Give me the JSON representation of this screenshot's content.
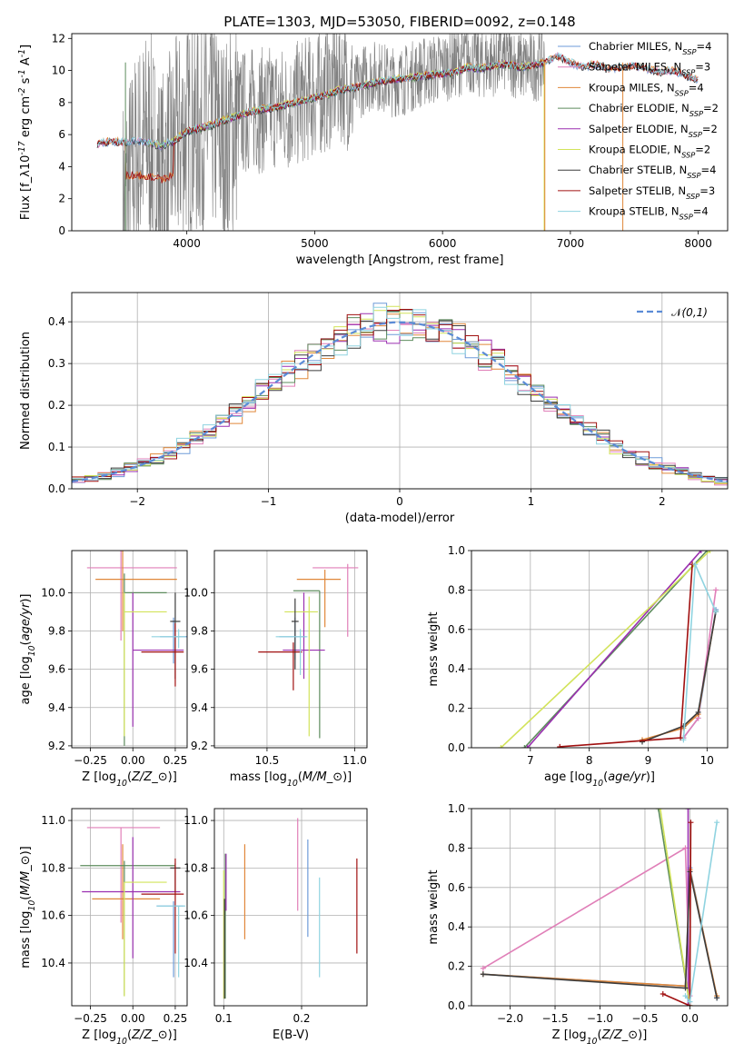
{
  "figure": {
    "title": "PLATE=1303, MJD=53050, FIBERID=0092, z=0.148"
  },
  "colors": {
    "data_gray": "#808080",
    "normal_curve": "#5b8bd6",
    "grid": "#b0b0b0",
    "series": [
      "#6e9bd8",
      "#e07fb8",
      "#e0873a",
      "#5d8c5d",
      "#9a2fb0",
      "#d2e35a",
      "#3b3b3b",
      "#a01010",
      "#8fd3e0"
    ]
  },
  "series_names": [
    "Chabrier MILES, N$_{SSP}$=4",
    "Salpeter MILES, N$_{SSP}$=3",
    "Kroupa MILES, N$_{SSP}$=4",
    "Chabrier ELODIE, N$_{SSP}$=2",
    "Salpeter ELODIE, N$_{SSP}$=2",
    "Kroupa ELODIE, N$_{SSP}$=2",
    "Chabrier STELIB, N$_{SSP}$=4",
    "Salpeter STELIB, N$_{SSP}$=3",
    "Kroupa STELIB, N$_{SSP}$=4"
  ],
  "chart_data": [
    {
      "id": "spectrum",
      "type": "line",
      "xlabel": "wavelength [Angstrom, rest frame]",
      "ylabel": "Flux [f$_\\lambda$10$^{-17}$ erg cm$^{-2}$ s$^{-1}$ A$^{-1}$]",
      "xlim": [
        3100,
        8230
      ],
      "ylim": [
        0,
        12.3
      ],
      "xticks": [
        4000,
        5000,
        6000,
        7000,
        8000
      ],
      "yticks": [
        0,
        2,
        4,
        6,
        8,
        10,
        12
      ],
      "grid": false,
      "legend": "top-right",
      "data_series": {
        "x": [
          3500,
          3600,
          3700,
          3800,
          3900,
          4000,
          4100,
          4200,
          4300,
          4400,
          4500,
          4600,
          4700,
          4800,
          4900,
          5000,
          5100,
          5200,
          5300,
          5400,
          5500,
          5600,
          5700,
          5800,
          5900,
          6000,
          6100,
          6200,
          6300,
          6400,
          6500,
          6600,
          6700,
          6800
        ],
        "y": [
          1.5,
          4.5,
          6,
          3,
          5,
          6.4,
          6.2,
          6.8,
          5.2,
          7.2,
          7.6,
          7.5,
          7.8,
          7.5,
          8.1,
          8.4,
          8.9,
          9.5,
          8.6,
          9.6,
          9.7,
          9.3,
          9.4,
          9.8,
          10,
          10.2,
          10.5,
          10.8,
          10.4,
          10.6,
          10.8,
          10.3,
          10.2,
          10.5
        ]
      },
      "model": {
        "x": [
          3300,
          3400,
          3500,
          3600,
          3700,
          3800,
          3900,
          4000,
          4100,
          4200,
          4300,
          4400,
          4500,
          4600,
          4700,
          4800,
          4900,
          5000,
          5100,
          5200,
          5300,
          5400,
          5500,
          5600,
          5700,
          5800,
          5900,
          6000,
          6100,
          6200,
          6300,
          6400,
          6500,
          6600,
          6700,
          6800,
          6900,
          7000,
          7100,
          7200,
          7300,
          7400,
          7500,
          7600,
          7700,
          7800,
          7900,
          8000
        ],
        "y": [
          5.4,
          5.6,
          5.5,
          5.6,
          5.5,
          5.3,
          5.6,
          6.2,
          6.4,
          6.6,
          6.9,
          7.2,
          7.4,
          7.6,
          7.7,
          7.9,
          8.1,
          8.3,
          8.5,
          8.8,
          8.9,
          9.1,
          9.3,
          9.4,
          9.5,
          9.6,
          9.7,
          9.8,
          9.9,
          10.2,
          10.1,
          10.3,
          10.4,
          10.2,
          10.3,
          10.5,
          10.9,
          10.5,
          10.2,
          10.4,
          10.1,
          10.2,
          10.3,
          10.1,
          9.9,
          10,
          9.7,
          9.4
        ]
      }
    },
    {
      "id": "residuals",
      "type": "line",
      "xlabel": "(data-model)/error",
      "ylabel": "Normed distribution",
      "xlim": [
        -2.5,
        2.5
      ],
      "ylim": [
        0,
        0.47
      ],
      "xticks": [
        -2,
        -1,
        0,
        1,
        2
      ],
      "yticks": [
        0.0,
        0.1,
        0.2,
        0.3,
        0.4
      ],
      "grid": true,
      "legend": "top-right",
      "legend_label": "$\\mathcal{N}(0,1)$",
      "normal_curve": {
        "mu": 0,
        "sigma": 1
      }
    },
    {
      "id": "age_vs_Z",
      "type": "scatter",
      "xlabel": "Z [log$_{10}$($Z/Z_\\odot$)]",
      "ylabel": "age  [log$_{10}$($age/yr$)]",
      "xlim": [
        -0.36,
        0.32
      ],
      "ylim": [
        9.19,
        10.22
      ],
      "xticks": [
        -0.25,
        0.0,
        0.25
      ],
      "yticks": [
        9.2,
        9.4,
        9.6,
        9.8,
        10.0
      ],
      "grid": true,
      "points": [
        {
          "s": 0,
          "x": 0.24,
          "y": 9.77,
          "xerr": [
            0.08,
            0.36
          ],
          "yerr": [
            0.14,
            0.1
          ]
        },
        {
          "s": 1,
          "x": -0.07,
          "y": 10.13,
          "xerr": [
            0.2,
            0.33
          ],
          "yerr": [
            0.38,
            0.3
          ]
        },
        {
          "s": 2,
          "x": -0.06,
          "y": 10.07,
          "xerr": [
            0.16,
            0.32
          ],
          "yerr": [
            0.27,
            0.2
          ]
        },
        {
          "s": 3,
          "x": -0.05,
          "y": 10.0,
          "xerr": [
            0.0,
            0.25
          ],
          "yerr": [
            0.8,
            0.1
          ]
        },
        {
          "s": 4,
          "x": 0.0,
          "y": 9.7,
          "xerr": [
            0.0,
            0.3
          ],
          "yerr": [
            0.4,
            0.3
          ]
        },
        {
          "s": 5,
          "x": -0.05,
          "y": 9.9,
          "xerr": [
            0.0,
            0.25
          ],
          "yerr": [
            0.65,
            0.1
          ]
        },
        {
          "s": 6,
          "x": 0.25,
          "y": 9.85,
          "xerr": [
            0.03,
            0.03
          ],
          "yerr": [
            0.3,
            0.15
          ]
        },
        {
          "s": 7,
          "x": 0.25,
          "y": 9.69,
          "xerr": [
            0.2,
            0.05
          ],
          "yerr": [
            0.18,
            0.15
          ]
        },
        {
          "s": 8,
          "x": 0.27,
          "y": 9.77,
          "xerr": [
            0.16,
            0.04
          ],
          "yerr": [
            0.06,
            0.04
          ]
        }
      ]
    },
    {
      "id": "age_vs_mass",
      "type": "scatter",
      "xlabel": "mass [log$_{10}$($M/M_\\odot$)]",
      "ylabel": "",
      "xlim": [
        10.2,
        11.07
      ],
      "ylim": [
        9.19,
        10.22
      ],
      "xticks": [
        10.5,
        11.0
      ],
      "yticks": [
        9.2,
        9.4,
        9.6,
        9.8,
        10.0
      ],
      "grid": true,
      "points": [
        {
          "s": 0,
          "x": 10.66,
          "y": 9.77,
          "xerr": [
            0.09,
            0.06
          ],
          "yerr": [
            0.12,
            0.1
          ]
        },
        {
          "s": 1,
          "x": 10.96,
          "y": 10.13,
          "xerr": [
            0.2,
            0.06
          ],
          "yerr": [
            0.36,
            0.02
          ]
        },
        {
          "s": 2,
          "x": 10.83,
          "y": 10.07,
          "xerr": [
            0.16,
            0.09
          ],
          "yerr": [
            0.25,
            0.05
          ]
        },
        {
          "s": 3,
          "x": 10.8,
          "y": 10.01,
          "xerr": [
            0.15,
            0.0
          ],
          "yerr": [
            0.77,
            0.0
          ]
        },
        {
          "s": 4,
          "x": 10.71,
          "y": 9.7,
          "xerr": [
            0.12,
            0.12
          ],
          "yerr": [
            0.15,
            0.3
          ]
        },
        {
          "s": 5,
          "x": 10.74,
          "y": 9.9,
          "xerr": [
            0.14,
            0.05
          ],
          "yerr": [
            0.65,
            0.08
          ]
        },
        {
          "s": 6,
          "x": 10.66,
          "y": 9.85,
          "xerr": [
            0.02,
            0.02
          ],
          "yerr": [
            0.25,
            0.12
          ]
        },
        {
          "s": 7,
          "x": 10.65,
          "y": 9.69,
          "xerr": [
            0.2,
            0.05
          ],
          "yerr": [
            0.2,
            0.05
          ]
        },
        {
          "s": 8,
          "x": 10.69,
          "y": 9.77,
          "xerr": [
            0.14,
            0.04
          ],
          "yerr": [
            0.2,
            0.04
          ]
        }
      ]
    },
    {
      "id": "weight_vs_age",
      "type": "line",
      "xlabel": "age  [log$_{10}$($age/yr$)]",
      "ylabel": "mass weight",
      "xlim": [
        6.0,
        10.35
      ],
      "ylim": [
        0,
        1.0
      ],
      "xticks": [
        7,
        8,
        9,
        10
      ],
      "yticks": [
        0.0,
        0.2,
        0.4,
        0.6,
        0.8,
        1.0
      ],
      "grid": true,
      "lines": [
        {
          "s": 0,
          "x": [
            9.6,
            9.85,
            10.15
          ],
          "y": [
            0.05,
            0.15,
            0.7
          ]
        },
        {
          "s": 1,
          "x": [
            9.6,
            9.85,
            10.15
          ],
          "y": [
            0.05,
            0.15,
            0.8
          ]
        },
        {
          "s": 2,
          "x": [
            8.9,
            9.6,
            9.85,
            10.15
          ],
          "y": [
            0.04,
            0.1,
            0.17,
            0.69
          ]
        },
        {
          "s": 3,
          "x": [
            6.9,
            10.0
          ],
          "y": [
            0.0,
            1.0
          ]
        },
        {
          "s": 4,
          "x": [
            6.95,
            9.9
          ],
          "y": [
            0.0,
            1.0
          ]
        },
        {
          "s": 5,
          "x": [
            6.5,
            10.05
          ],
          "y": [
            0.0,
            1.0
          ]
        },
        {
          "s": 6,
          "x": [
            8.9,
            9.6,
            9.85,
            10.15
          ],
          "y": [
            0.03,
            0.11,
            0.18,
            0.69
          ]
        },
        {
          "s": 7,
          "x": [
            7.5,
            9.55,
            9.75
          ],
          "y": [
            0.005,
            0.05,
            0.93
          ]
        },
        {
          "s": 8,
          "x": [
            9.6,
            9.8,
            10.15
          ],
          "y": [
            0.04,
            0.93,
            0.69
          ]
        }
      ]
    },
    {
      "id": "mass_vs_Z",
      "type": "scatter",
      "xlabel": "Z [log$_{10}$($Z/Z_\\odot$)]",
      "ylabel": "mass [log$_{10}$($M/M_\\odot$)]",
      "xlim": [
        -0.36,
        0.32
      ],
      "ylim": [
        10.22,
        11.05
      ],
      "xticks": [
        -0.25,
        0.0,
        0.25
      ],
      "yticks": [
        10.4,
        10.6,
        10.8,
        11.0
      ],
      "grid": true,
      "points": [
        {
          "s": 0,
          "x": 0.24,
          "y": 10.64,
          "xerr": [
            0.1,
            0.06
          ],
          "yerr": [
            0.3,
            0.02
          ]
        },
        {
          "s": 1,
          "x": -0.07,
          "y": 10.97,
          "xerr": [
            0.2,
            0.23
          ],
          "yerr": [
            0.4,
            0.0
          ]
        },
        {
          "s": 2,
          "x": -0.06,
          "y": 10.67,
          "xerr": [
            0.18,
            0.22
          ],
          "yerr": [
            0.17,
            0.23
          ]
        },
        {
          "s": 3,
          "x": -0.05,
          "y": 10.81,
          "xerr": [
            0.26,
            0.3
          ],
          "yerr": [
            0.55,
            0.02
          ]
        },
        {
          "s": 4,
          "x": 0.0,
          "y": 10.7,
          "xerr": [
            0.3,
            0.28
          ],
          "yerr": [
            0.28,
            0.23
          ]
        },
        {
          "s": 5,
          "x": -0.05,
          "y": 10.74,
          "xerr": [
            0.0,
            0.25
          ],
          "yerr": [
            0.48,
            0.0
          ]
        },
        {
          "s": 6,
          "x": 0.25,
          "y": 10.8,
          "xerr": [
            0.03,
            0.03
          ],
          "yerr": [
            0.1,
            0.02
          ]
        },
        {
          "s": 7,
          "x": 0.25,
          "y": 10.69,
          "xerr": [
            0.2,
            0.05
          ],
          "yerr": [
            0.25,
            0.15
          ]
        },
        {
          "s": 8,
          "x": 0.27,
          "y": 10.64,
          "xerr": [
            0.13,
            0.04
          ],
          "yerr": [
            0.3,
            0.0
          ]
        }
      ]
    },
    {
      "id": "mass_vs_EBV",
      "type": "scatter",
      "xlabel": "E(B-V)",
      "ylabel": "",
      "xlim": [
        0.088,
        0.284
      ],
      "ylim": [
        10.22,
        11.05
      ],
      "xticks": [
        0.1,
        0.2
      ],
      "yticks": [
        10.4,
        10.6,
        10.8,
        11.0
      ],
      "grid": true,
      "points": [
        {
          "s": 0,
          "x": 0.208,
          "y": 10.64,
          "xerr": [
            0,
            0
          ],
          "yerr": [
            0.13,
            0.28
          ]
        },
        {
          "s": 1,
          "x": 0.195,
          "y": 10.75,
          "xerr": [
            0,
            0
          ],
          "yerr": [
            0.13,
            0.26
          ]
        },
        {
          "s": 2,
          "x": 0.127,
          "y": 10.73,
          "xerr": [
            0,
            0
          ],
          "yerr": [
            0.23,
            0.17
          ]
        },
        {
          "s": 3,
          "x": 0.102,
          "y": 10.6,
          "xerr": [
            0,
            0
          ],
          "yerr": [
            0.35,
            0.26
          ]
        },
        {
          "s": 4,
          "x": 0.103,
          "y": 10.72,
          "xerr": [
            0,
            0
          ],
          "yerr": [
            0.1,
            0.14
          ]
        },
        {
          "s": 5,
          "x": 0.1,
          "y": 10.65,
          "xerr": [
            0,
            0
          ],
          "yerr": [
            0.4,
            0.14
          ]
        },
        {
          "s": 6,
          "x": 0.101,
          "y": 10.55,
          "xerr": [
            0,
            0
          ],
          "yerr": [
            0.3,
            0.12
          ]
        },
        {
          "s": 7,
          "x": 0.271,
          "y": 10.64,
          "xerr": [
            0,
            0
          ],
          "yerr": [
            0.2,
            0.2
          ]
        },
        {
          "s": 8,
          "x": 0.223,
          "y": 10.55,
          "xerr": [
            0,
            0
          ],
          "yerr": [
            0.21,
            0.21
          ]
        }
      ]
    },
    {
      "id": "weight_vs_Z",
      "type": "line",
      "xlabel": "Z [log$_{10}$($Z/Z_\\odot$)]",
      "ylabel": "mass weight",
      "xlim": [
        -2.43,
        0.42
      ],
      "ylim": [
        0,
        1.0
      ],
      "xticks": [
        -2.0,
        -1.5,
        -1.0,
        -0.5,
        0.0
      ],
      "yticks": [
        0.0,
        0.2,
        0.4,
        0.6,
        0.8,
        1.0
      ],
      "grid": true,
      "lines": [
        {
          "s": 0,
          "x": [
            -2.3,
            -0.05,
            0.0,
            0.3
          ],
          "y": [
            0.16,
            0.1,
            0.7,
            0.04
          ]
        },
        {
          "s": 1,
          "x": [
            -2.3,
            -0.05,
            0.0
          ],
          "y": [
            0.19,
            0.8,
            0.05
          ]
        },
        {
          "s": 2,
          "x": [
            -2.3,
            -0.05,
            0.0,
            0.3
          ],
          "y": [
            0.16,
            0.1,
            0.69,
            0.05
          ]
        },
        {
          "s": 3,
          "x": [
            -0.35,
            0.0
          ],
          "y": [
            1.0,
            0.0
          ]
        },
        {
          "s": 4,
          "x": [
            -0.02,
            -0.02
          ],
          "y": [
            0.0,
            1.0
          ]
        },
        {
          "s": 5,
          "x": [
            -0.33,
            0.0
          ],
          "y": [
            1.0,
            0.0
          ]
        },
        {
          "s": 6,
          "x": [
            -2.3,
            -0.05,
            0.0,
            0.3
          ],
          "y": [
            0.16,
            0.09,
            0.68,
            0.04
          ]
        },
        {
          "s": 7,
          "x": [
            -0.3,
            0.0,
            0.01
          ],
          "y": [
            0.06,
            0.0,
            0.93
          ]
        },
        {
          "s": 8,
          "x": [
            -0.05,
            0.0,
            0.3
          ],
          "y": [
            0.05,
            0.02,
            0.93
          ]
        }
      ]
    }
  ]
}
